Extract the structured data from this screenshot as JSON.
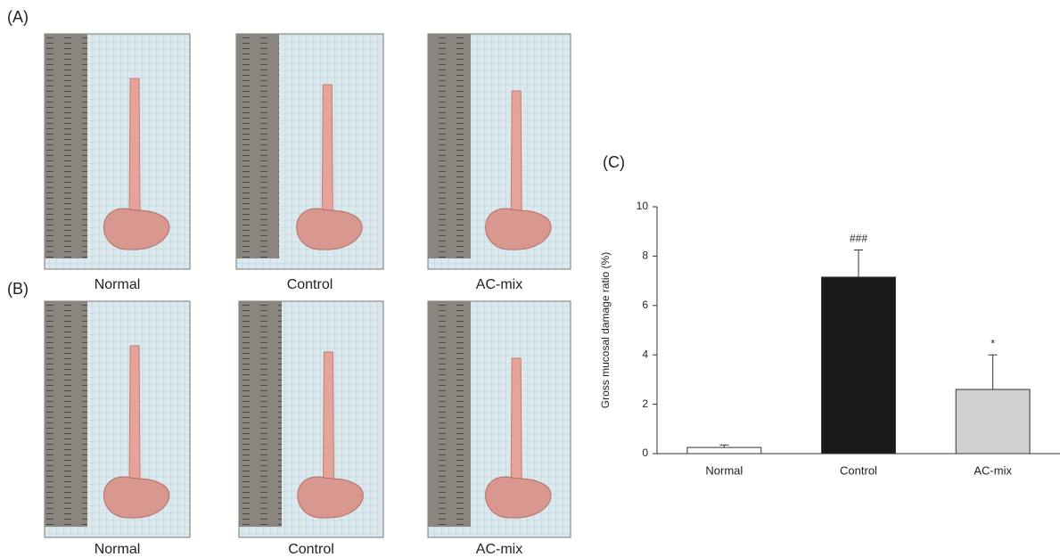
{
  "panels": [
    {
      "label": "(A)",
      "captions": [
        "Normal",
        "Control",
        "AC-mix"
      ]
    },
    {
      "label": "(B)",
      "captions": [
        "Normal",
        "Control",
        "AC-mix"
      ]
    }
  ],
  "chart_data": {
    "type": "bar",
    "panel_label": "(C)",
    "y_label": "Gross mucosal damage ratio (%)",
    "categories": [
      "Normal",
      "Control",
      "AC-mix"
    ],
    "values": [
      0.25,
      7.15,
      2.6
    ],
    "errors": [
      0.1,
      1.1,
      1.4
    ],
    "bar_labels": [
      null,
      "###",
      "*"
    ],
    "colors": [
      "#ffffff",
      "#1a1a1a",
      "#d0d0d0"
    ],
    "ylim": [
      0,
      10
    ],
    "yticks": [
      0,
      2,
      4,
      6,
      8,
      10
    ],
    "grid": false
  }
}
